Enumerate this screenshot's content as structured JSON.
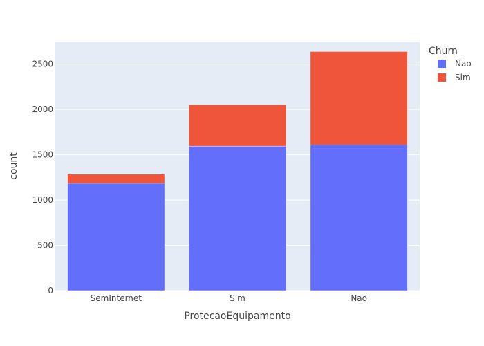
{
  "chart_data": {
    "type": "bar",
    "barmode": "stack",
    "categories": [
      "SemInternet",
      "Sim",
      "Nao"
    ],
    "series": [
      {
        "name": "Nao",
        "values": [
          1185,
          1595,
          1610
        ]
      },
      {
        "name": "Sim",
        "values": [
          100,
          455,
          1030
        ]
      }
    ],
    "xlabel": "ProtecaoEquipamento",
    "ylabel": "count",
    "ylim": [
      0,
      2750
    ],
    "yticks": [
      0,
      500,
      1000,
      1500,
      2000,
      2500
    ],
    "grid": true,
    "legend": {
      "title": "Churn",
      "placement": "top-right"
    }
  },
  "colors": {
    "Nao": "#636efa",
    "Sim": "#ef553b",
    "plot_bg": "#e5ecf6",
    "grid": "#ffffff"
  }
}
